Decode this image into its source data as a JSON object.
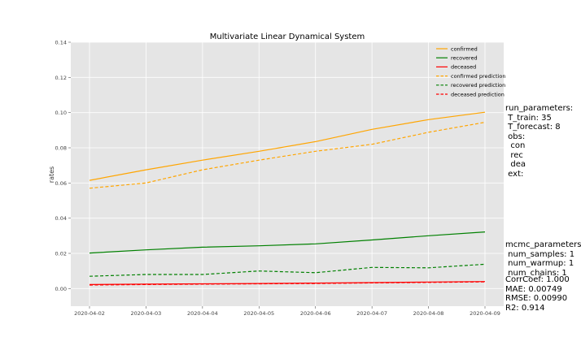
{
  "chart_data": {
    "type": "line",
    "title": "Multivariate Linear Dynamical System",
    "xlabel": "",
    "ylabel": "rates",
    "categories": [
      "2020-04-02",
      "2020-04-03",
      "2020-04-04",
      "2020-04-05",
      "2020-04-06",
      "2020-04-07",
      "2020-04-08",
      "2020-04-09"
    ],
    "ylim": [
      -0.01,
      0.14
    ],
    "yticks": [
      "0.00",
      "0.02",
      "0.04",
      "0.06",
      "0.08",
      "0.10",
      "0.12",
      "0.14"
    ],
    "ytick_values": [
      0,
      0.02,
      0.04,
      0.06,
      0.08,
      0.1,
      0.12,
      0.14
    ],
    "grid": true,
    "legend_position": "top-right",
    "series": [
      {
        "name": "confirmed",
        "color": "#ffa500",
        "style": "solid",
        "values": [
          0.0615,
          0.0675,
          0.073,
          0.078,
          0.0835,
          0.0905,
          0.096,
          0.1002
        ]
      },
      {
        "name": "recovered",
        "color": "#008000",
        "style": "solid",
        "values": [
          0.0202,
          0.022,
          0.0235,
          0.0243,
          0.0254,
          0.0276,
          0.03,
          0.0322
        ]
      },
      {
        "name": "deceased",
        "color": "#ff0000",
        "style": "solid",
        "values": [
          0.0023,
          0.0025,
          0.0027,
          0.0029,
          0.0031,
          0.0034,
          0.0037,
          0.004
        ]
      },
      {
        "name": "confirmed prediction",
        "color": "#ffa500",
        "style": "dashed",
        "values": [
          0.057,
          0.06,
          0.0675,
          0.073,
          0.078,
          0.082,
          0.0888,
          0.0945
        ]
      },
      {
        "name": "recovered prediction",
        "color": "#008000",
        "style": "dashed",
        "values": [
          0.007,
          0.008,
          0.008,
          0.01,
          0.009,
          0.012,
          0.0118,
          0.0138
        ]
      },
      {
        "name": "deceased prediction",
        "color": "#ff0000",
        "style": "dashed",
        "values": [
          0.002,
          0.0023,
          0.0025,
          0.0027,
          0.0029,
          0.0032,
          0.0035,
          0.0038
        ]
      }
    ]
  },
  "annotations": {
    "run_parameters": [
      "run_parameters:",
      " T_train: 35",
      " T_forecast: 8",
      " obs:",
      "  con",
      "  rec",
      "  dea",
      " ext:"
    ],
    "mcmc_parameters": [
      "mcmc_parameters",
      " num_samples: 1",
      " num_warmup: 1",
      " num_chains: 1"
    ],
    "metrics": [
      "CorrCoef: 1.000",
      "MAE: 0.00749",
      "RMSE: 0.00990",
      "R2: 0.914"
    ]
  }
}
